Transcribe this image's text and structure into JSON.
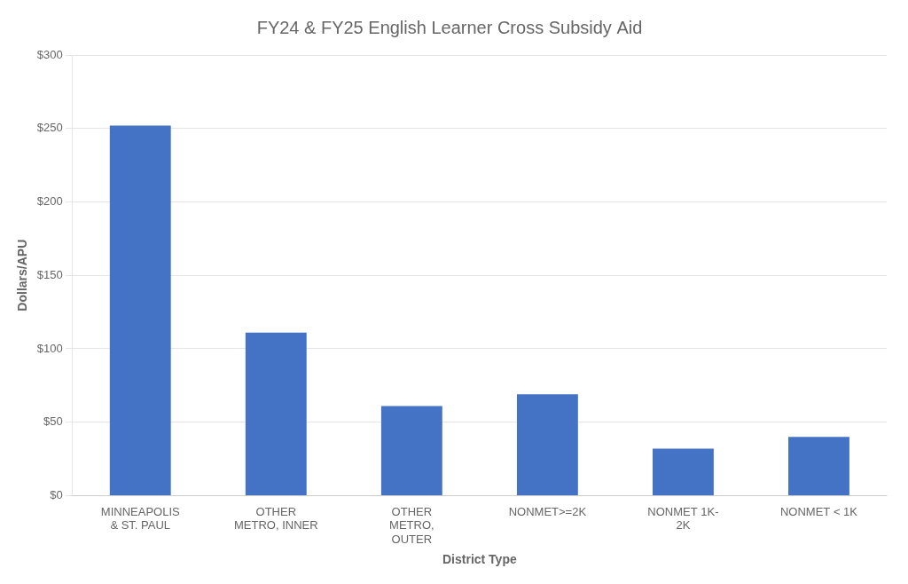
{
  "chart_data": {
    "type": "bar",
    "title": "FY24 & FY25 English Learner Cross Subsidy Aid",
    "xlabel": "District Type",
    "ylabel": "Dollars/APU",
    "categories": [
      "MINNEAPOLIS\n& ST. PAUL",
      "OTHER\nMETRO, INNER",
      "OTHER\nMETRO,\nOUTER",
      "NONMET>=2K",
      "NONMET 1K-\n2K",
      "NONMET < 1K"
    ],
    "values": [
      252,
      111,
      61,
      69,
      32,
      40
    ],
    "color": "#4472C4",
    "ylim": [
      0,
      300
    ],
    "yticks": [
      {
        "value": 0,
        "label": "$0"
      },
      {
        "value": 50,
        "label": "$50"
      },
      {
        "value": 100,
        "label": "$100"
      },
      {
        "value": 150,
        "label": "$150"
      },
      {
        "value": 200,
        "label": "$200"
      },
      {
        "value": 250,
        "label": "$250"
      },
      {
        "value": 300,
        "label": "$300"
      }
    ],
    "grid": true
  }
}
